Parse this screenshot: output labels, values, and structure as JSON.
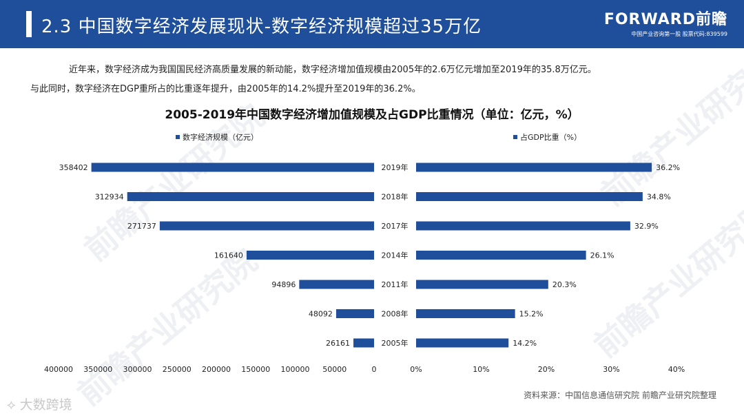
{
  "header": {
    "title": "2.3 中国数字经济发展现状-数字经济规模超过35万亿",
    "logo_brand": "FORWARD前瞻",
    "logo_sub": "中国产业咨询第一股  股票代码:839599"
  },
  "intro": {
    "line1": "近年来，数字经济成为我国国民经济高质量发展的新动能，数字经济增加值规模由2005年的2.6万亿元增加至2019年的35.8万亿元。",
    "line2": "与此同时，数字经济在DGP重所占的比重逐年提升，由2005年的14.2%提升至2019年的36.2%。"
  },
  "chart_data": {
    "type": "bar",
    "title": "2005-2019年中国数字经济增加值规模及占GDP比重情况（单位：亿元，%）",
    "categories": [
      "2019年",
      "2018年",
      "2017年",
      "2014年",
      "2011年",
      "2008年",
      "2005年"
    ],
    "series": [
      {
        "name": "数字经济规模（亿元）",
        "values": [
          358402,
          312934,
          271737,
          161640,
          94896,
          48092,
          26161
        ],
        "labels": [
          "358402",
          "312934",
          "271737",
          "161640",
          "94896",
          "48092",
          "26161"
        ],
        "xlim": [
          0,
          400000
        ],
        "ticks": [
          "400000",
          "350000",
          "300000",
          "250000",
          "200000",
          "150000",
          "100000",
          "50000",
          "0"
        ],
        "direction": "reversed"
      },
      {
        "name": "占GDP比重（%）",
        "values": [
          36.2,
          34.8,
          32.9,
          26.1,
          20.3,
          15.2,
          14.2
        ],
        "labels": [
          "36.2%",
          "34.8%",
          "32.9%",
          "26.1%",
          "20.3%",
          "15.2%",
          "14.2%"
        ],
        "xlim": [
          0,
          40
        ],
        "ticks": [
          "0%",
          "10%",
          "20%",
          "30%",
          "40%"
        ],
        "direction": "normal"
      }
    ],
    "bar_color": "#1f4e9a"
  },
  "watermark_text": "前瞻产业研究院",
  "source": "资料来源：中国信息通信研究院 前瞻产业研究院整理",
  "corner_text": "大数跨境"
}
